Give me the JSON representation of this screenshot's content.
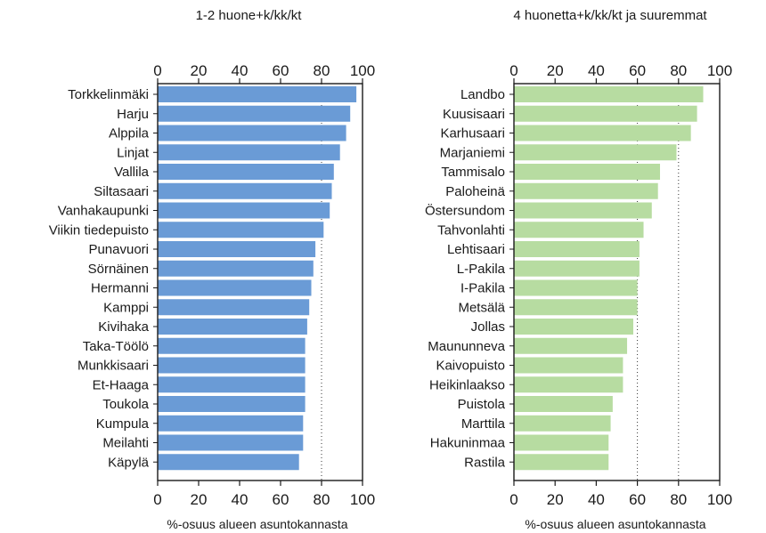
{
  "chart_data": [
    {
      "type": "bar",
      "orientation": "horizontal",
      "title": "1-2 huone+k/kk/kt",
      "xlabel": "%-osuus alueen asuntokannasta",
      "xlim": [
        0,
        100
      ],
      "ticks": [
        "0",
        "20",
        "40",
        "60",
        "80",
        "100"
      ],
      "color": "#6a9bd6",
      "grid": "dotted lines at 80",
      "categories": [
        "Torkkelinmäki",
        "Harju",
        "Alppila",
        "Linjat",
        "Vallila",
        "Siltasaari",
        "Vanhakaupunki",
        "Viikin tiedepuisto",
        "Punavuori",
        "Sörnäinen",
        "Hermanni",
        "Kamppi",
        "Kivihaka",
        "Taka-Töölö",
        "Munkkisaari",
        "Et-Haaga",
        "Toukola",
        "Kumpula",
        "Meilahti",
        "Käpylä"
      ],
      "values": [
        97,
        94,
        92,
        89,
        86,
        85,
        84,
        81,
        77,
        76,
        75,
        74,
        73,
        72,
        72,
        72,
        72,
        71,
        71,
        69
      ]
    },
    {
      "type": "bar",
      "orientation": "horizontal",
      "title": "4 huonetta+k/kk/kt ja suuremmat",
      "xlabel": "%-osuus alueen asuntokannasta",
      "xlim": [
        0,
        100
      ],
      "ticks": [
        "0",
        "20",
        "40",
        "60",
        "80",
        "100"
      ],
      "color": "#b7dca1",
      "grid": "dotted lines at 60 and 80",
      "categories": [
        "Landbo",
        "Kuusisaari",
        "Karhusaari",
        "Marjaniemi",
        "Tammisalo",
        "Paloheinä",
        "Östersundom",
        "Tahvonlahti",
        "Lehtisaari",
        "L-Pakila",
        "I-Pakila",
        "Metsälä",
        "Jollas",
        "Maununneva",
        "Kaivopuisto",
        "Heikinlaakso",
        "Puistola",
        "Marttila",
        "Hakuninmaa",
        "Rastila"
      ],
      "values": [
        92,
        89,
        86,
        79,
        71,
        70,
        67,
        63,
        61,
        61,
        60,
        60,
        58,
        55,
        53,
        53,
        48,
        47,
        46,
        46
      ]
    }
  ]
}
